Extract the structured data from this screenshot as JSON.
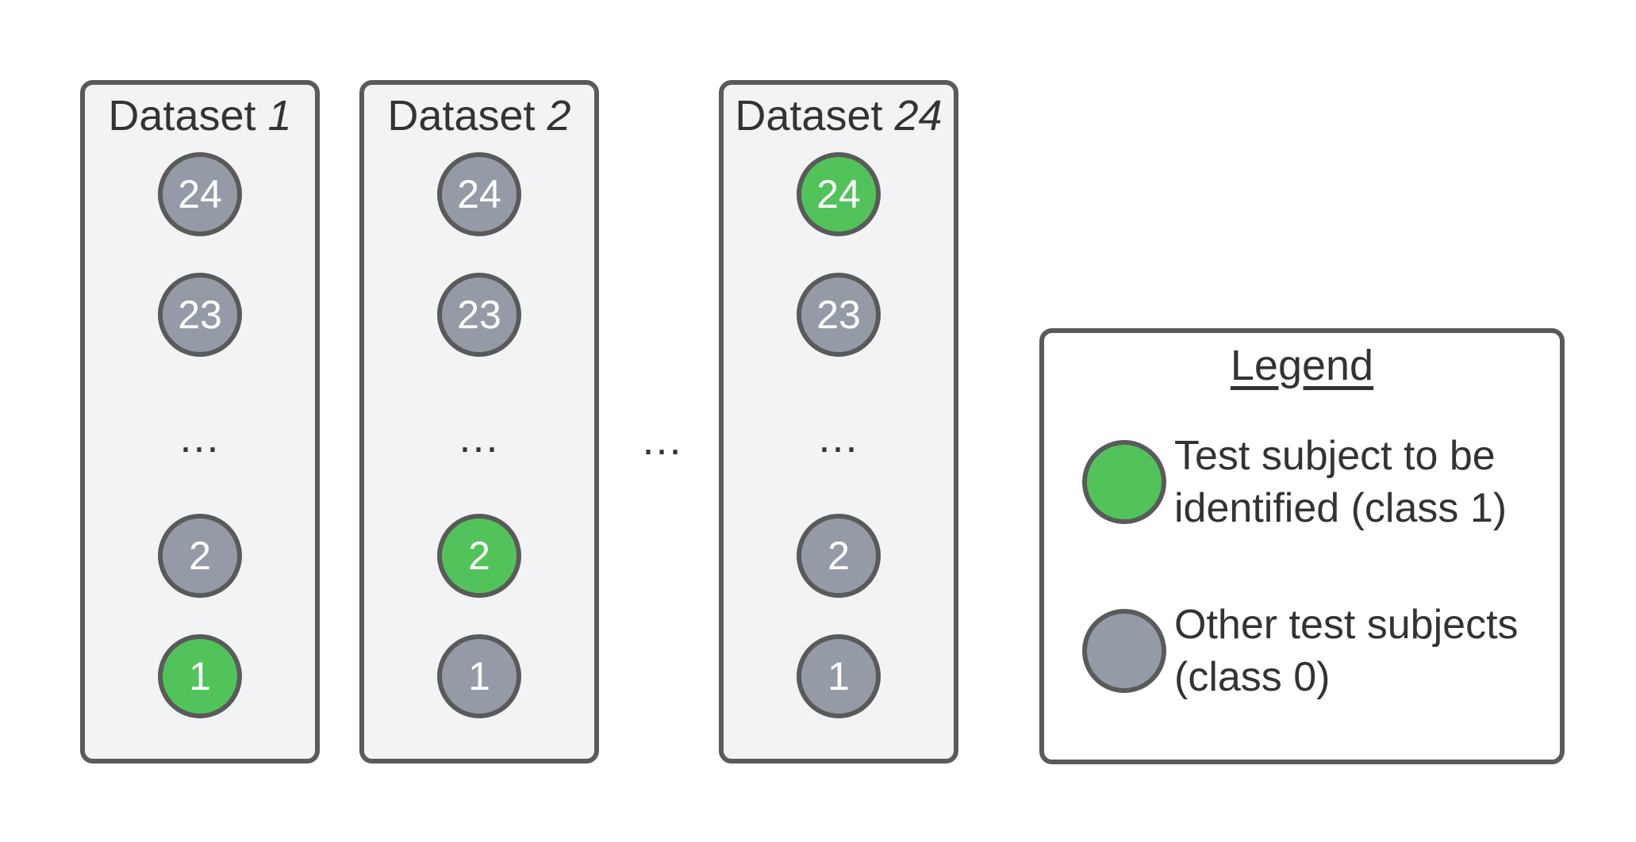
{
  "datasets": [
    {
      "label": "Dataset",
      "number": "1",
      "top_nodes": [
        {
          "label": "24",
          "color": "gray"
        },
        {
          "label": "23",
          "color": "gray"
        }
      ],
      "ellipsis": "...",
      "bottom_nodes": [
        {
          "label": "2",
          "color": "gray"
        },
        {
          "label": "1",
          "color": "green"
        }
      ]
    },
    {
      "label": "Dataset",
      "number": "2",
      "top_nodes": [
        {
          "label": "24",
          "color": "gray"
        },
        {
          "label": "23",
          "color": "gray"
        }
      ],
      "ellipsis": "...",
      "bottom_nodes": [
        {
          "label": "2",
          "color": "green"
        },
        {
          "label": "1",
          "color": "gray"
        }
      ]
    },
    {
      "label": "Dataset",
      "number": "24",
      "top_nodes": [
        {
          "label": "24",
          "color": "green"
        },
        {
          "label": "23",
          "color": "gray"
        }
      ],
      "ellipsis": "...",
      "bottom_nodes": [
        {
          "label": "2",
          "color": "gray"
        },
        {
          "label": "1",
          "color": "gray"
        }
      ]
    }
  ],
  "between_ellipsis": "...",
  "legend": {
    "title": "Legend",
    "items": [
      {
        "color": "green",
        "text_line1": "Test subject to be",
        "text_line2": "identified (class 1)"
      },
      {
        "color": "gray",
        "text_line1": "Other test subjects",
        "text_line2": "(class 0)"
      }
    ]
  },
  "colors": {
    "green": "#52c35a",
    "gray": "#959ba6",
    "border": "#5a5a5a",
    "panel": "#f2f3f5"
  }
}
